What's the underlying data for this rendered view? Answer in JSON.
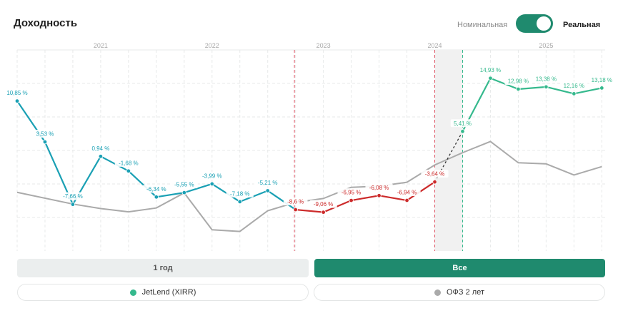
{
  "header": {
    "title": "Доходность",
    "mode_nominal": "Номинальная",
    "mode_real": "Реальная",
    "toggle_state": "real"
  },
  "colors": {
    "teal": "#1aa0b4",
    "green": "#35b98d",
    "red": "#cc2a2a",
    "gray": "#aaaaaa",
    "accent": "#1f8a6e"
  },
  "buttons": {
    "one_year": "1 год",
    "all": "Все",
    "active": "all"
  },
  "legend": [
    {
      "label": "JetLend (XIRR)",
      "color": "#35b98d"
    },
    {
      "label": "ОФЗ 2 лет",
      "color": "#aaaaaa"
    }
  ],
  "chart_data": {
    "type": "line",
    "x_ticks": [
      "2021",
      "2022",
      "2023",
      "2024",
      "2025"
    ],
    "series": [
      {
        "name": "JetLend (XIRR)",
        "x": [
          2020.5,
          2020.75,
          2021.0,
          2021.25,
          2021.5,
          2021.75,
          2022.0,
          2022.25,
          2022.5,
          2022.75,
          2023.0,
          2023.25,
          2023.5,
          2023.75,
          2024.0,
          2024.25,
          2024.5,
          2024.75,
          2025.0,
          2025.25,
          2025.5,
          2025.75
        ],
        "values": [
          10.85,
          3.53,
          -7.66,
          0.94,
          -1.68,
          -6.34,
          -5.55,
          -3.99,
          -7.18,
          -5.21,
          -8.6,
          -9.06,
          -6.95,
          -6.08,
          -6.94,
          -3.64,
          5.41,
          14.93,
          12.98,
          13.38,
          12.16,
          13.18
        ],
        "labels": [
          "10,85 %",
          "3,53 %",
          "-7,66 %",
          "0,94 %",
          "-1,68 %",
          "-6,34 %",
          "-5,55 %",
          "-3,99 %",
          "-7,18 %",
          "-5,21 %",
          "-8,6 %",
          "-9,06 %",
          "-6,95 %",
          "-6,08 %",
          "-6,94 %",
          "-3,64 %",
          "5,41 %",
          "14,93 %",
          "12,98 %",
          "13,38 %",
          "12,16 %",
          "13,18 %"
        ],
        "segment_colors": [
          "#1aa0b4",
          "#cc2a2a",
          "#35b98d"
        ]
      },
      {
        "name": "ОФЗ 2 лет",
        "x": [
          2020.5,
          2021.0,
          2021.25,
          2021.5,
          2021.75,
          2022.0,
          2022.25,
          2022.5,
          2022.75,
          2023.0,
          2023.25,
          2023.5,
          2023.75,
          2024.0,
          2024.25,
          2024.5,
          2024.75,
          2025.0,
          2025.25,
          2025.5,
          2025.75
        ],
        "values": [
          -5.5,
          -7.6,
          -8.4,
          -9.0,
          -8.3,
          -5.6,
          -12.2,
          -12.5,
          -8.8,
          -7.3,
          -6.6,
          -4.6,
          -4.4,
          -3.7,
          -0.6,
          1.6,
          3.6,
          -0.2,
          -0.4,
          -2.4,
          -0.9
        ]
      }
    ],
    "markers": [
      {
        "x": 2022.99,
        "kind": "dashed-line",
        "color": "#e05a6a"
      },
      {
        "x": 2024.25,
        "kind": "dashed-line",
        "color": "#e05a6a"
      },
      {
        "x": 2024.5,
        "kind": "dashed-line",
        "color": "#35b98d"
      }
    ],
    "shaded_range": [
      2024.25,
      2024.5
    ],
    "ylim": [
      -16,
      20
    ],
    "xlim": [
      2020.5,
      2025.78
    ],
    "grid": true
  }
}
